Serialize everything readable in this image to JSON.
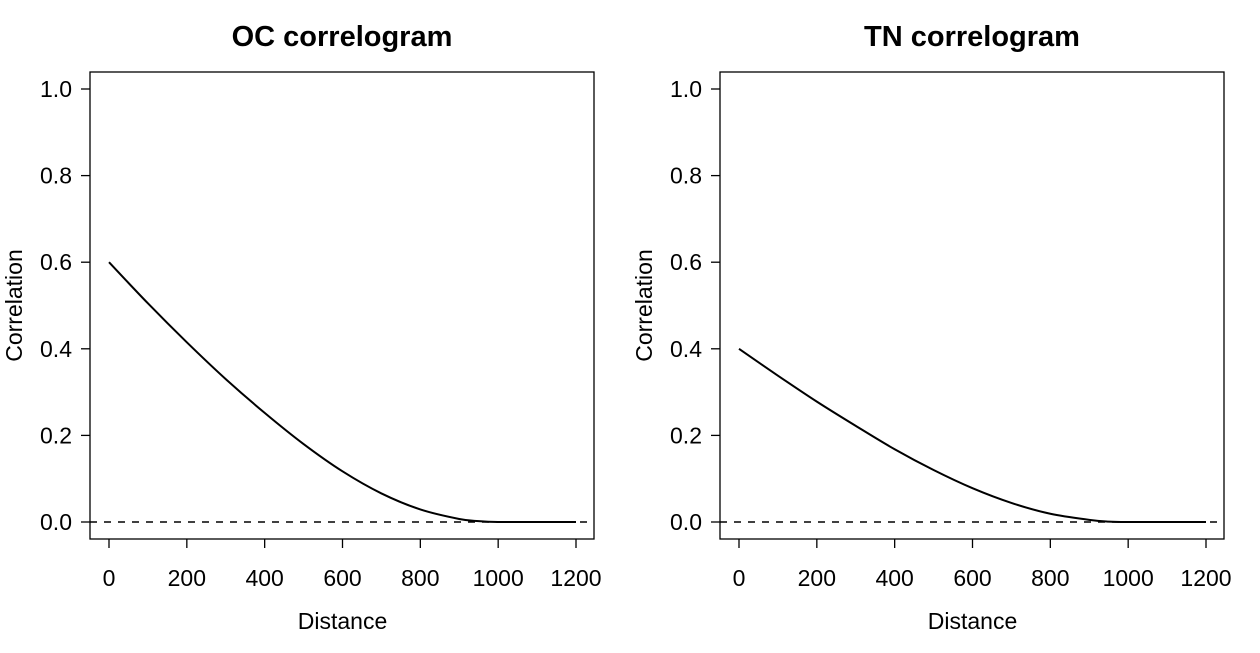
{
  "chart_data": [
    {
      "type": "line",
      "title": "OC correlogram",
      "xlabel": "Distance",
      "ylabel": "Correlation",
      "xlim": [
        0,
        1200
      ],
      "ylim": [
        0,
        1
      ],
      "xticks": [
        "0",
        "200",
        "400",
        "600",
        "800",
        "1000",
        "1200"
      ],
      "yticks": [
        "0.0",
        "0.2",
        "0.4",
        "0.6",
        "0.8",
        "1.0"
      ],
      "grid": false,
      "reference_line": {
        "y": 0,
        "style": "dashed"
      },
      "series": [
        {
          "x": [
            0,
            100,
            200,
            300,
            400,
            500,
            600,
            700,
            800,
            900,
            950,
            1000,
            1100,
            1200
          ],
          "values": [
            0.6,
            0.505,
            0.415,
            0.33,
            0.252,
            0.18,
            0.117,
            0.066,
            0.029,
            0.007,
            0.002,
            0,
            0,
            0
          ]
        }
      ]
    },
    {
      "type": "line",
      "title": "TN correlogram",
      "xlabel": "Distance",
      "ylabel": "Correlation",
      "xlim": [
        0,
        1200
      ],
      "ylim": [
        0,
        1
      ],
      "xticks": [
        "0",
        "200",
        "400",
        "600",
        "800",
        "1000",
        "1200"
      ],
      "yticks": [
        "0.0",
        "0.2",
        "0.4",
        "0.6",
        "0.8",
        "1.0"
      ],
      "grid": false,
      "reference_line": {
        "y": 0,
        "style": "dashed"
      },
      "series": [
        {
          "x": [
            0,
            100,
            200,
            300,
            400,
            500,
            600,
            700,
            800,
            900,
            950,
            1000,
            1100,
            1200
          ],
          "values": [
            0.4,
            0.338,
            0.278,
            0.222,
            0.168,
            0.12,
            0.078,
            0.044,
            0.019,
            0.005,
            0.001,
            0,
            0,
            0
          ]
        }
      ]
    }
  ]
}
